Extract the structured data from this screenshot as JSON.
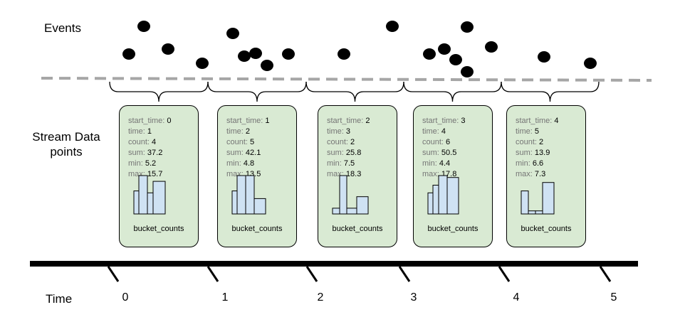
{
  "labels": {
    "events": "Events",
    "stream_line1": "Stream Data",
    "stream_line2": "points",
    "time": "Time"
  },
  "colors": {
    "card_fill": "#d9ead3",
    "bar_fill": "#cfe2f3",
    "dashed_line": "#a6a6a6",
    "field_key": "#757575"
  },
  "field_keys": {
    "start_time": "start_time:",
    "time": "time:",
    "count": "count:",
    "sum": "sum:",
    "min": "min:",
    "max": "max:"
  },
  "bucket_label": "bucket_counts",
  "points": [
    {
      "start_time": "0",
      "time": "1",
      "count": "4",
      "sum": "37.2",
      "min": "5.2",
      "max": "15.7",
      "bucket_counts": [
        0.6,
        1.0,
        0.55,
        0.85
      ]
    },
    {
      "start_time": "1",
      "time": "2",
      "count": "5",
      "sum": "42.1",
      "min": "4.8",
      "max": "13.5",
      "bucket_counts": [
        0.6,
        1.0,
        1.0,
        0.4
      ]
    },
    {
      "start_time": "2",
      "time": "3",
      "count": "2",
      "sum": "25.8",
      "min": "7.5",
      "max": "18.3",
      "bucket_counts": [
        0.15,
        1.0,
        0.15,
        0.45
      ]
    },
    {
      "start_time": "3",
      "time": "4",
      "count": "6",
      "sum": "50.5",
      "min": "4.4",
      "max": "17.8",
      "bucket_counts": [
        0.55,
        0.75,
        1.0,
        0.95
      ]
    },
    {
      "start_time": "4",
      "time": "5",
      "count": "2",
      "sum": "13.9",
      "min": "6.6",
      "max": "7.3",
      "bucket_counts": [
        0.6,
        0.08,
        0.08,
        0.82
      ]
    }
  ],
  "time_ticks": [
    "0",
    "1",
    "2",
    "3",
    "4",
    "5"
  ]
}
